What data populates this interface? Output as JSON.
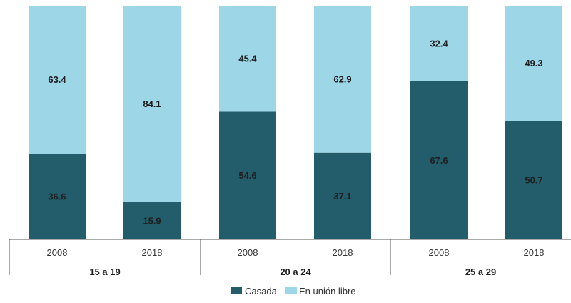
{
  "chart_data": {
    "type": "bar",
    "stacked": true,
    "percent": true,
    "groups": [
      "15 a 19",
      "20 a 24",
      "25 a 29"
    ],
    "categories": [
      "2008",
      "2018"
    ],
    "series": [
      {
        "name": "Casada",
        "color": "#235d6b",
        "values": [
          [
            36.6,
            15.9
          ],
          [
            54.6,
            37.1
          ],
          [
            67.6,
            50.7
          ]
        ]
      },
      {
        "name": "En unión libre",
        "color": "#9dd6e7",
        "values": [
          [
            63.4,
            84.1
          ],
          [
            45.4,
            62.9
          ],
          [
            32.4,
            49.3
          ]
        ]
      }
    ],
    "ylim": [
      0,
      100
    ],
    "grid": false,
    "legend_position": "bottom"
  }
}
